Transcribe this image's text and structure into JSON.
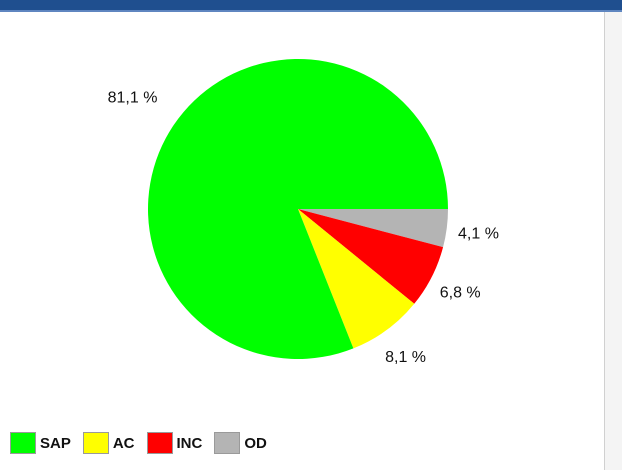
{
  "chart_data": {
    "type": "pie",
    "title": "",
    "start_angle_deg": 0,
    "direction": "clockwise",
    "slices": [
      {
        "name": "OD",
        "value": 4.1,
        "label": "4,1 %",
        "color": "#b4b4b4"
      },
      {
        "name": "INC",
        "value": 6.8,
        "label": "6,8 %",
        "color": "#ff0000"
      },
      {
        "name": "AC",
        "value": 8.1,
        "label": "8,1 %",
        "color": "#ffff00"
      },
      {
        "name": "SAP",
        "value": 81.1,
        "label": "81,1 %",
        "color": "#00ff00"
      }
    ],
    "legend": {
      "placement": "bottom-left",
      "entries": [
        {
          "name": "SAP",
          "color": "#00ff00"
        },
        {
          "name": "AC",
          "color": "#ffff00"
        },
        {
          "name": "INC",
          "color": "#ff0000"
        },
        {
          "name": "OD",
          "color": "#b4b4b4"
        }
      ]
    }
  }
}
